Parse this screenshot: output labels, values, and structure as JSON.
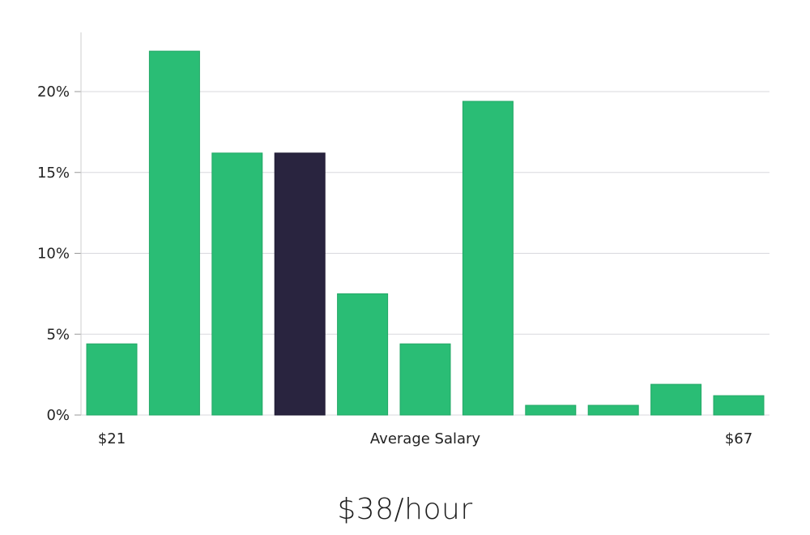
{
  "headline": "$38/hour",
  "colors": {
    "bar": "#2abd75",
    "highlight": "#29243f",
    "grid": "#d8d8de",
    "axis": "#cccccc"
  },
  "chart_data": {
    "type": "bar",
    "title": "",
    "xlabel": "Average Salary",
    "ylabel": "",
    "x_start_label": "$21",
    "x_end_label": "$67",
    "values": [
      4.4,
      22.5,
      16.2,
      16.2,
      7.5,
      4.4,
      19.4,
      0.6,
      0.6,
      1.9,
      1.2
    ],
    "highlight_index": 3,
    "ylim": [
      0,
      23.6
    ],
    "yticks": [
      0,
      5,
      10,
      15,
      20
    ],
    "ytick_labels": [
      "0%",
      "5%",
      "10%",
      "15%",
      "20%"
    ],
    "grid": true
  }
}
